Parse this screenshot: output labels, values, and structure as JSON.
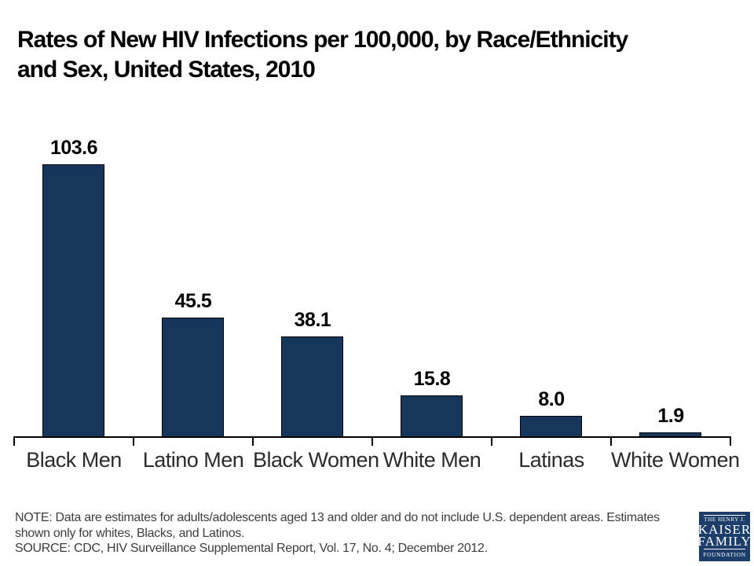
{
  "title": {
    "line1": "Rates of New HIV Infections per 100,000, by Race/Ethnicity",
    "line2": "and Sex, United States, 2010"
  },
  "chart_data": {
    "type": "bar",
    "title": "Rates of New HIV Infections per 100,000, by Race/Ethnicity and Sex, United States, 2010",
    "categories": [
      "Black Men",
      "Latino Men",
      "Black Women",
      "White Men",
      "Latinas",
      "White Women"
    ],
    "values": [
      103.6,
      45.5,
      38.1,
      15.8,
      8.0,
      1.9
    ],
    "value_labels": [
      "103.6",
      "45.5",
      "38.1",
      "15.8",
      "8.0",
      "1.9"
    ],
    "xlabel": "",
    "ylabel": "",
    "ylim": [
      0,
      110
    ],
    "grid": false,
    "legend": false,
    "bar_color": "#17365C",
    "bar_border_color": "#000000",
    "axis_color": "#000000"
  },
  "footnote": {
    "note_lines": [
      "NOTE: Data are estimates for adults/adolescents aged 13 and older and do not include U.S. dependent areas.  Estimates",
      "shown only for whites, Blacks, and Latinos."
    ],
    "source": "SOURCE: CDC, HIV Surveillance Supplemental Report, Vol. 17, No. 4; December 2012."
  },
  "logo": {
    "lines": [
      "THE HENRY J.",
      "KAISER",
      "FAMILY",
      "FOUNDATION"
    ],
    "bg_color": "#1D3E6A"
  }
}
